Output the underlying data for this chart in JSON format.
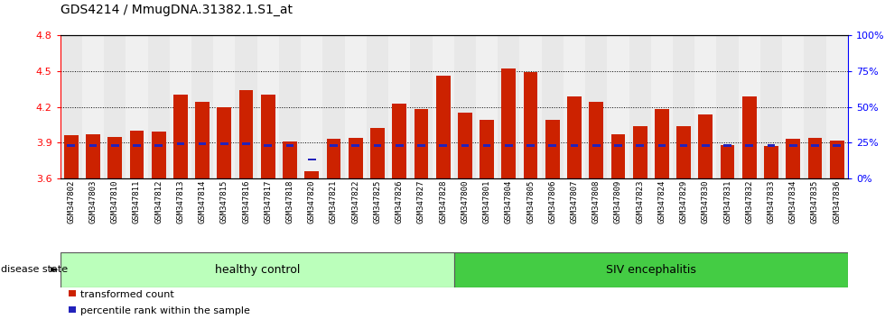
{
  "title": "GDS4214 / MmugDNA.31382.1.S1_at",
  "samples": [
    "GSM347802",
    "GSM347803",
    "GSM347810",
    "GSM347811",
    "GSM347812",
    "GSM347813",
    "GSM347814",
    "GSM347815",
    "GSM347816",
    "GSM347817",
    "GSM347818",
    "GSM347820",
    "GSM347821",
    "GSM347822",
    "GSM347825",
    "GSM347826",
    "GSM347827",
    "GSM347828",
    "GSM347800",
    "GSM347801",
    "GSM347804",
    "GSM347805",
    "GSM347806",
    "GSM347807",
    "GSM347808",
    "GSM347809",
    "GSM347823",
    "GSM347824",
    "GSM347829",
    "GSM347830",
    "GSM347831",
    "GSM347832",
    "GSM347833",
    "GSM347834",
    "GSM347835",
    "GSM347836"
  ],
  "red_values": [
    3.96,
    3.97,
    3.95,
    4.0,
    3.99,
    4.3,
    4.24,
    4.2,
    4.34,
    4.3,
    3.91,
    3.66,
    3.93,
    3.94,
    4.02,
    4.23,
    4.18,
    4.46,
    4.15,
    4.09,
    4.52,
    4.49,
    4.09,
    4.29,
    4.24,
    3.97,
    4.04,
    4.18,
    4.04,
    4.14,
    3.88,
    4.29,
    3.87,
    3.93,
    3.94,
    3.92
  ],
  "blue_values": [
    3.875,
    3.875,
    3.875,
    3.875,
    3.875,
    3.895,
    3.895,
    3.895,
    3.895,
    3.875,
    3.875,
    3.76,
    3.875,
    3.875,
    3.875,
    3.875,
    3.875,
    3.875,
    3.875,
    3.875,
    3.875,
    3.875,
    3.875,
    3.875,
    3.875,
    3.875,
    3.875,
    3.875,
    3.875,
    3.875,
    3.875,
    3.875,
    3.875,
    3.875,
    3.875,
    3.875
  ],
  "healthy_count": 18,
  "ylim_left": [
    3.6,
    4.8
  ],
  "yticks_left": [
    3.6,
    3.9,
    4.2,
    4.5,
    4.8
  ],
  "yticks_right_pct": [
    0,
    25,
    50,
    75,
    100
  ],
  "bar_color": "#cc2200",
  "blue_color": "#2222bb",
  "healthy_color": "#bbffbb",
  "siv_color": "#44cc44",
  "plot_bg": "#e8e8e8",
  "group_label_healthy": "healthy control",
  "group_label_siv": "SIV encephalitis"
}
